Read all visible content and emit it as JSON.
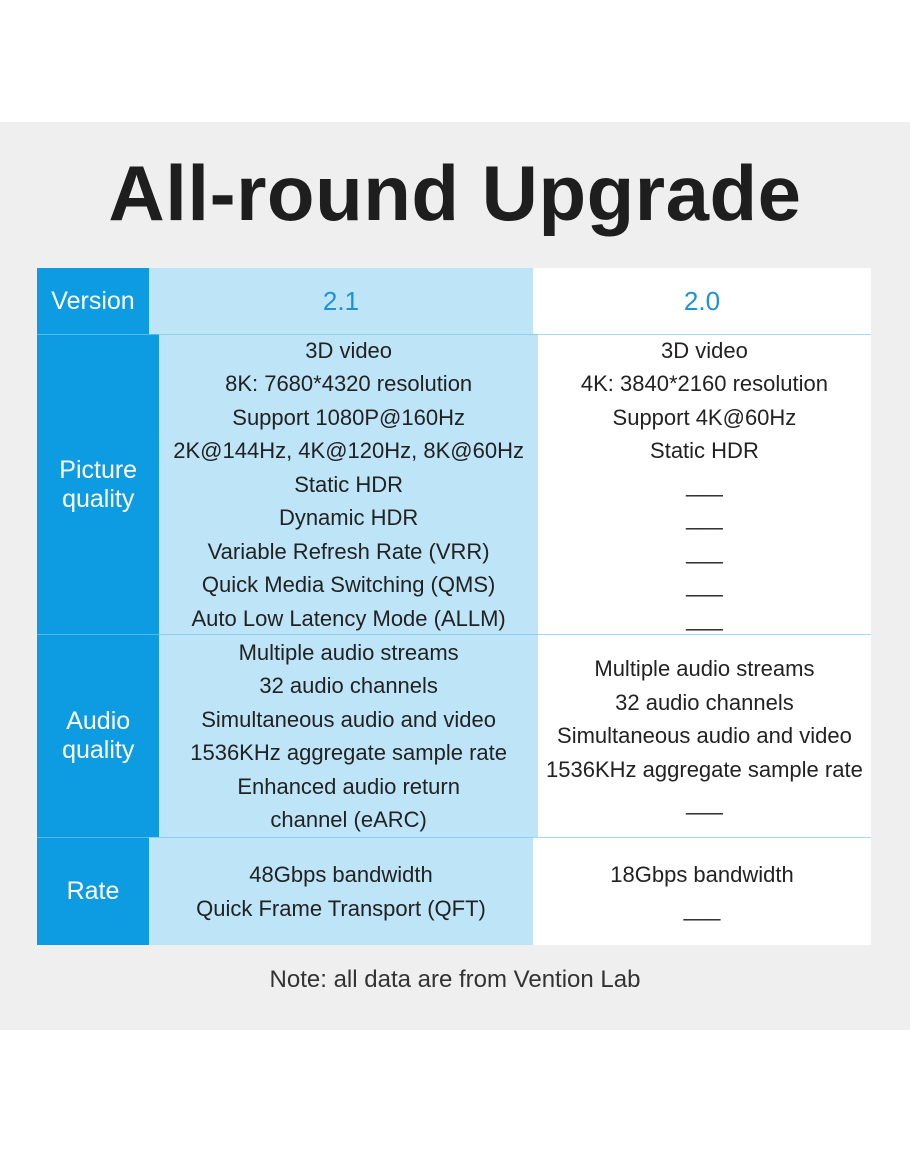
{
  "title": "All-round Upgrade",
  "table": {
    "header": {
      "label": "Version",
      "v21": "2.1",
      "v20": "2.0"
    },
    "rows": [
      {
        "label": "Picture quality",
        "v21": [
          "3D video",
          "8K: 7680*4320 resolution",
          "Support 1080P@160Hz",
          "2K@144Hz, 4K@120Hz, 8K@60Hz",
          "Static HDR",
          "Dynamic HDR",
          "Variable Refresh Rate (VRR)",
          "Quick Media Switching (QMS)",
          "Auto Low Latency Mode (ALLM)"
        ],
        "v20": [
          "3D video",
          "4K: 3840*2160 resolution",
          "Support 4K@60Hz",
          "Static HDR",
          "___",
          "___",
          "___",
          "___",
          "___"
        ]
      },
      {
        "label": "Audio quality",
        "v21": [
          "Multiple audio streams",
          "32 audio channels",
          "Simultaneous audio and video",
          "1536KHz aggregate sample rate",
          "Enhanced audio return",
          "channel (eARC)"
        ],
        "v20": [
          "Multiple audio streams",
          "32 audio channels",
          "Simultaneous audio and video",
          "1536KHz aggregate sample rate",
          "___"
        ]
      },
      {
        "label": "Rate",
        "v21": [
          "48Gbps bandwidth",
          "Quick Frame Transport (QFT)"
        ],
        "v20": [
          "18Gbps bandwidth",
          "___"
        ]
      }
    ]
  },
  "note": "Note: all data are from Vention Lab",
  "colors": {
    "label_bg": "#0d9be2",
    "v21_bg": "#bde4f7",
    "v20_bg": "#ffffff",
    "panel_bg": "#efefef"
  }
}
